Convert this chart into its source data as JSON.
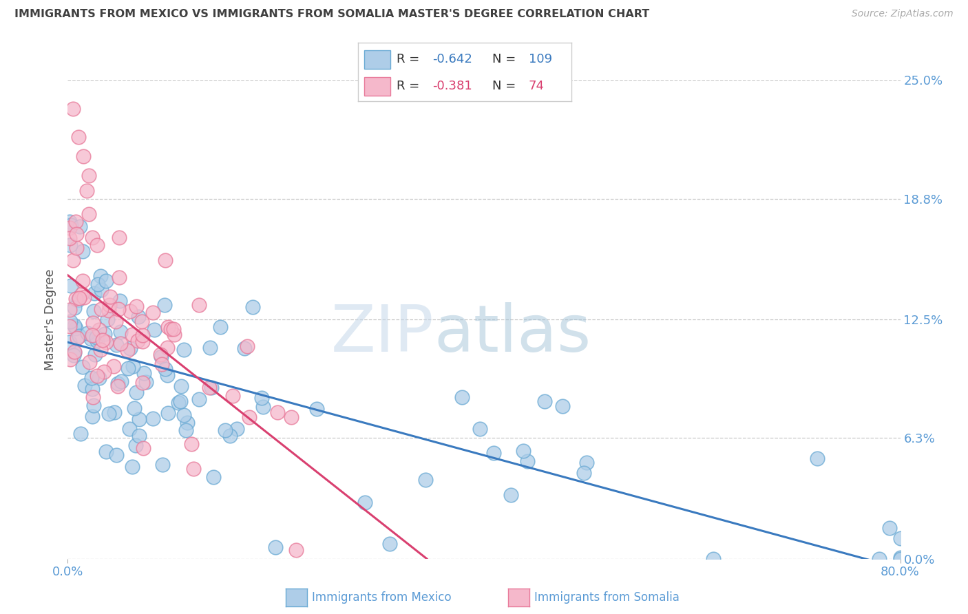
{
  "title": "IMMIGRANTS FROM MEXICO VS IMMIGRANTS FROM SOMALIA MASTER'S DEGREE CORRELATION CHART",
  "source": "Source: ZipAtlas.com",
  "ylabel": "Master's Degree",
  "xlim": [
    0.0,
    0.8
  ],
  "ylim": [
    0.0,
    0.25
  ],
  "ytick_labels": [
    "0.0%",
    "6.3%",
    "12.5%",
    "18.8%",
    "25.0%"
  ],
  "ytick_values": [
    0.0,
    0.063,
    0.125,
    0.188,
    0.25
  ],
  "xtick_labels": [
    "0.0%",
    "80.0%"
  ],
  "xtick_values": [
    0.0,
    0.8
  ],
  "mexico_color": "#aecde8",
  "mexico_edge_color": "#6aaad4",
  "somalia_color": "#f5b8cb",
  "somalia_edge_color": "#e87a9a",
  "mexico_R": -0.642,
  "mexico_N": 109,
  "somalia_R": -0.381,
  "somalia_N": 74,
  "trend_mexico_color": "#3a7abf",
  "trend_somalia_color": "#d94070",
  "watermark_zip": "ZIP",
  "watermark_atlas": "atlas",
  "background_color": "#ffffff",
  "grid_color": "#c8c8c8",
  "axis_label_color": "#5b9bd5",
  "title_color": "#404040",
  "legend_R_color": "#3a7abf",
  "legend_N_color": "#3a7abf",
  "mexico_trend_start_x": 0.0,
  "mexico_trend_start_y": 0.113,
  "mexico_trend_end_x": 0.8,
  "mexico_trend_end_y": -0.005,
  "somalia_trend_start_x": 0.0,
  "somalia_trend_start_y": 0.148,
  "somalia_trend_end_x": 0.345,
  "somalia_trend_end_y": 0.0
}
